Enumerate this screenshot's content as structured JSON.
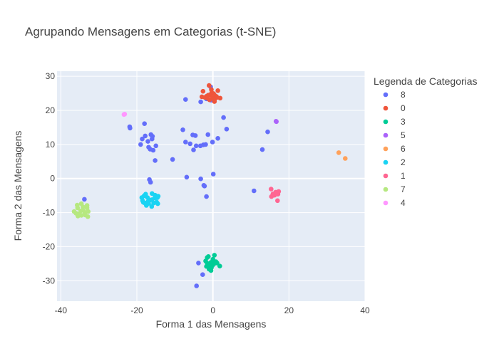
{
  "chart_data": {
    "type": "scatter",
    "title": "Agrupando Mensagens em Categorias (t-SNE)",
    "xlabel": "Forma 1 das Mensagens",
    "ylabel": "Forma 2 das Mensagens",
    "xlim": [
      -41,
      40
    ],
    "ylim": [
      -36,
      31.5
    ],
    "xticks": [
      -40,
      -20,
      0,
      20,
      40
    ],
    "yticks": [
      -30,
      -20,
      -10,
      0,
      10,
      20,
      30
    ],
    "grid": true,
    "legend": {
      "title": "Legenda de Categorias",
      "placement": "right"
    },
    "series": [
      {
        "name": "8",
        "color": "#636efa",
        "points": [
          [
            -7.2,
            23.2
          ],
          [
            -3.2,
            22.5
          ],
          [
            -1.7,
            23.4
          ],
          [
            -0.5,
            23.0
          ],
          [
            -0.6,
            26.9
          ],
          [
            2.8,
            17.9
          ],
          [
            3.6,
            14.5
          ],
          [
            14.4,
            13.7
          ],
          [
            -18.0,
            16.1
          ],
          [
            -21.9,
            15.2
          ],
          [
            -21.8,
            14.8
          ],
          [
            -16.3,
            12.9
          ],
          [
            -15.9,
            12.4
          ],
          [
            -17.8,
            12.5
          ],
          [
            -16.0,
            11.6
          ],
          [
            -18.6,
            11.6
          ],
          [
            -17.1,
            10.9
          ],
          [
            -15.0,
            9.6
          ],
          [
            -16.9,
            9.2
          ],
          [
            -15.7,
            8.3
          ],
          [
            -16.5,
            8.6
          ],
          [
            -19.0,
            10.0
          ],
          [
            -7.9,
            14.3
          ],
          [
            -5.3,
            12.8
          ],
          [
            -4.6,
            12.6
          ],
          [
            -7.2,
            10.7
          ],
          [
            -6.0,
            10.2
          ],
          [
            -4.4,
            9.6
          ],
          [
            -3.3,
            9.6
          ],
          [
            -2.5,
            9.9
          ],
          [
            -1.9,
            10.0
          ],
          [
            -1.3,
            12.9
          ],
          [
            -0.1,
            10.7
          ],
          [
            1.3,
            11.8
          ],
          [
            13.0,
            8.5
          ],
          [
            -5.1,
            8.4
          ],
          [
            -10.6,
            5.6
          ],
          [
            -15.2,
            5.3
          ],
          [
            -16.7,
            -0.3
          ],
          [
            -16.4,
            -1.1
          ],
          [
            -6.9,
            0.4
          ],
          [
            -3.2,
            -0.1
          ],
          [
            0.1,
            1.3
          ],
          [
            -2.4,
            -2.0
          ],
          [
            -2.2,
            -2.2
          ],
          [
            -1.7,
            -5.3
          ],
          [
            10.8,
            -3.6
          ],
          [
            -33.8,
            -6.1
          ],
          [
            -3.8,
            -24.8
          ],
          [
            -2.7,
            -28.2
          ],
          [
            -4.3,
            -31.5
          ]
        ]
      },
      {
        "name": "0",
        "color": "#ef553b",
        "points": [
          [
            -0.3,
            25.2
          ],
          [
            -0.3,
            25.0
          ],
          [
            -0.7,
            24.6
          ],
          [
            0.2,
            24.9
          ],
          [
            -1.2,
            24.5
          ],
          [
            -1.6,
            24.2
          ],
          [
            0.5,
            24.4
          ],
          [
            -2.1,
            23.8
          ],
          [
            -1.4,
            23.6
          ],
          [
            -0.2,
            23.6
          ],
          [
            0.4,
            23.1
          ],
          [
            1.1,
            23.8
          ],
          [
            1.9,
            23.6
          ],
          [
            -0.9,
            23.1
          ],
          [
            -2.9,
            24.0
          ],
          [
            -2.6,
            25.6
          ],
          [
            1.3,
            25.8
          ],
          [
            0.4,
            22.6
          ],
          [
            -1.0,
            27.3
          ],
          [
            -0.4,
            26.1
          ],
          [
            0.9,
            24.1
          ]
        ]
      },
      {
        "name": "3",
        "color": "#00cc96",
        "points": [
          [
            -0.8,
            -24.9
          ],
          [
            -0.5,
            -24.6
          ],
          [
            0.2,
            -24.2
          ],
          [
            0.8,
            -24.4
          ],
          [
            -1.5,
            -24.9
          ],
          [
            -1.7,
            -25.8
          ],
          [
            -1.1,
            -25.4
          ],
          [
            -1.9,
            -24.2
          ],
          [
            -1.5,
            -23.2
          ],
          [
            -0.6,
            -25.1
          ],
          [
            0.3,
            -25.0
          ],
          [
            -0.4,
            -26.2
          ],
          [
            -1.0,
            -26.6
          ],
          [
            -0.5,
            -27.0
          ],
          [
            0.4,
            -22.5
          ],
          [
            1.1,
            -24.8
          ],
          [
            1.8,
            -25.7
          ],
          [
            -1.2,
            -22.9
          ],
          [
            0.0,
            -23.7
          ],
          [
            -0.1,
            -25.5
          ]
        ]
      },
      {
        "name": "5",
        "color": "#ab63fa",
        "points": [
          [
            16.7,
            16.7
          ],
          [
            16.6,
            16.8
          ]
        ]
      },
      {
        "name": "6",
        "color": "#ffa15a",
        "points": [
          [
            34.8,
            5.9
          ],
          [
            33.1,
            7.6
          ]
        ]
      },
      {
        "name": "2",
        "color": "#19d3f3",
        "points": [
          [
            -16.5,
            -6.3
          ],
          [
            -16.0,
            -6.2
          ],
          [
            -17.2,
            -5.6
          ],
          [
            -15.3,
            -5.7
          ],
          [
            -14.6,
            -5.6
          ],
          [
            -18.1,
            -5.1
          ],
          [
            -17.7,
            -4.6
          ],
          [
            -16.0,
            -4.4
          ],
          [
            -15.2,
            -4.9
          ],
          [
            -14.4,
            -5.2
          ],
          [
            -18.7,
            -5.6
          ],
          [
            -18.5,
            -6.5
          ],
          [
            -17.9,
            -7.2
          ],
          [
            -17.5,
            -7.9
          ],
          [
            -16.1,
            -8.2
          ],
          [
            -15.6,
            -7.2
          ],
          [
            -14.8,
            -6.9
          ],
          [
            -14.5,
            -7.4
          ],
          [
            -17.1,
            -6.8
          ],
          [
            -16.9,
            -7.3
          ],
          [
            -18.3,
            -7.0
          ]
        ]
      },
      {
        "name": "1",
        "color": "#ff6692",
        "points": [
          [
            15.4,
            -5.3
          ],
          [
            15.8,
            -4.5
          ],
          [
            16.2,
            -4.9
          ],
          [
            16.7,
            -4.5
          ],
          [
            17.1,
            -4.6
          ],
          [
            16.5,
            -4.0
          ],
          [
            17.3,
            -3.8
          ],
          [
            15.3,
            -3.1
          ],
          [
            17.0,
            -6.5
          ]
        ]
      },
      {
        "name": "7",
        "color": "#b6e880",
        "points": [
          [
            -34.2,
            -9.3
          ],
          [
            -34.8,
            -9.5
          ],
          [
            -33.7,
            -9.9
          ],
          [
            -35.6,
            -8.6
          ],
          [
            -34.2,
            -8.3
          ],
          [
            -33.1,
            -8.6
          ],
          [
            -32.8,
            -9.7
          ],
          [
            -36.0,
            -10.2
          ],
          [
            -35.5,
            -11.0
          ],
          [
            -34.6,
            -10.8
          ],
          [
            -33.6,
            -10.7
          ],
          [
            -36.5,
            -9.7
          ],
          [
            -35.7,
            -7.8
          ],
          [
            -34.6,
            -7.4
          ],
          [
            -33.1,
            -7.9
          ],
          [
            -32.9,
            -11.2
          ],
          [
            -35.2,
            -10.5
          ]
        ]
      },
      {
        "name": "4",
        "color": "#ff97ff",
        "points": [
          [
            -23.4,
            18.8
          ],
          [
            -23.2,
            18.9
          ]
        ]
      }
    ]
  }
}
